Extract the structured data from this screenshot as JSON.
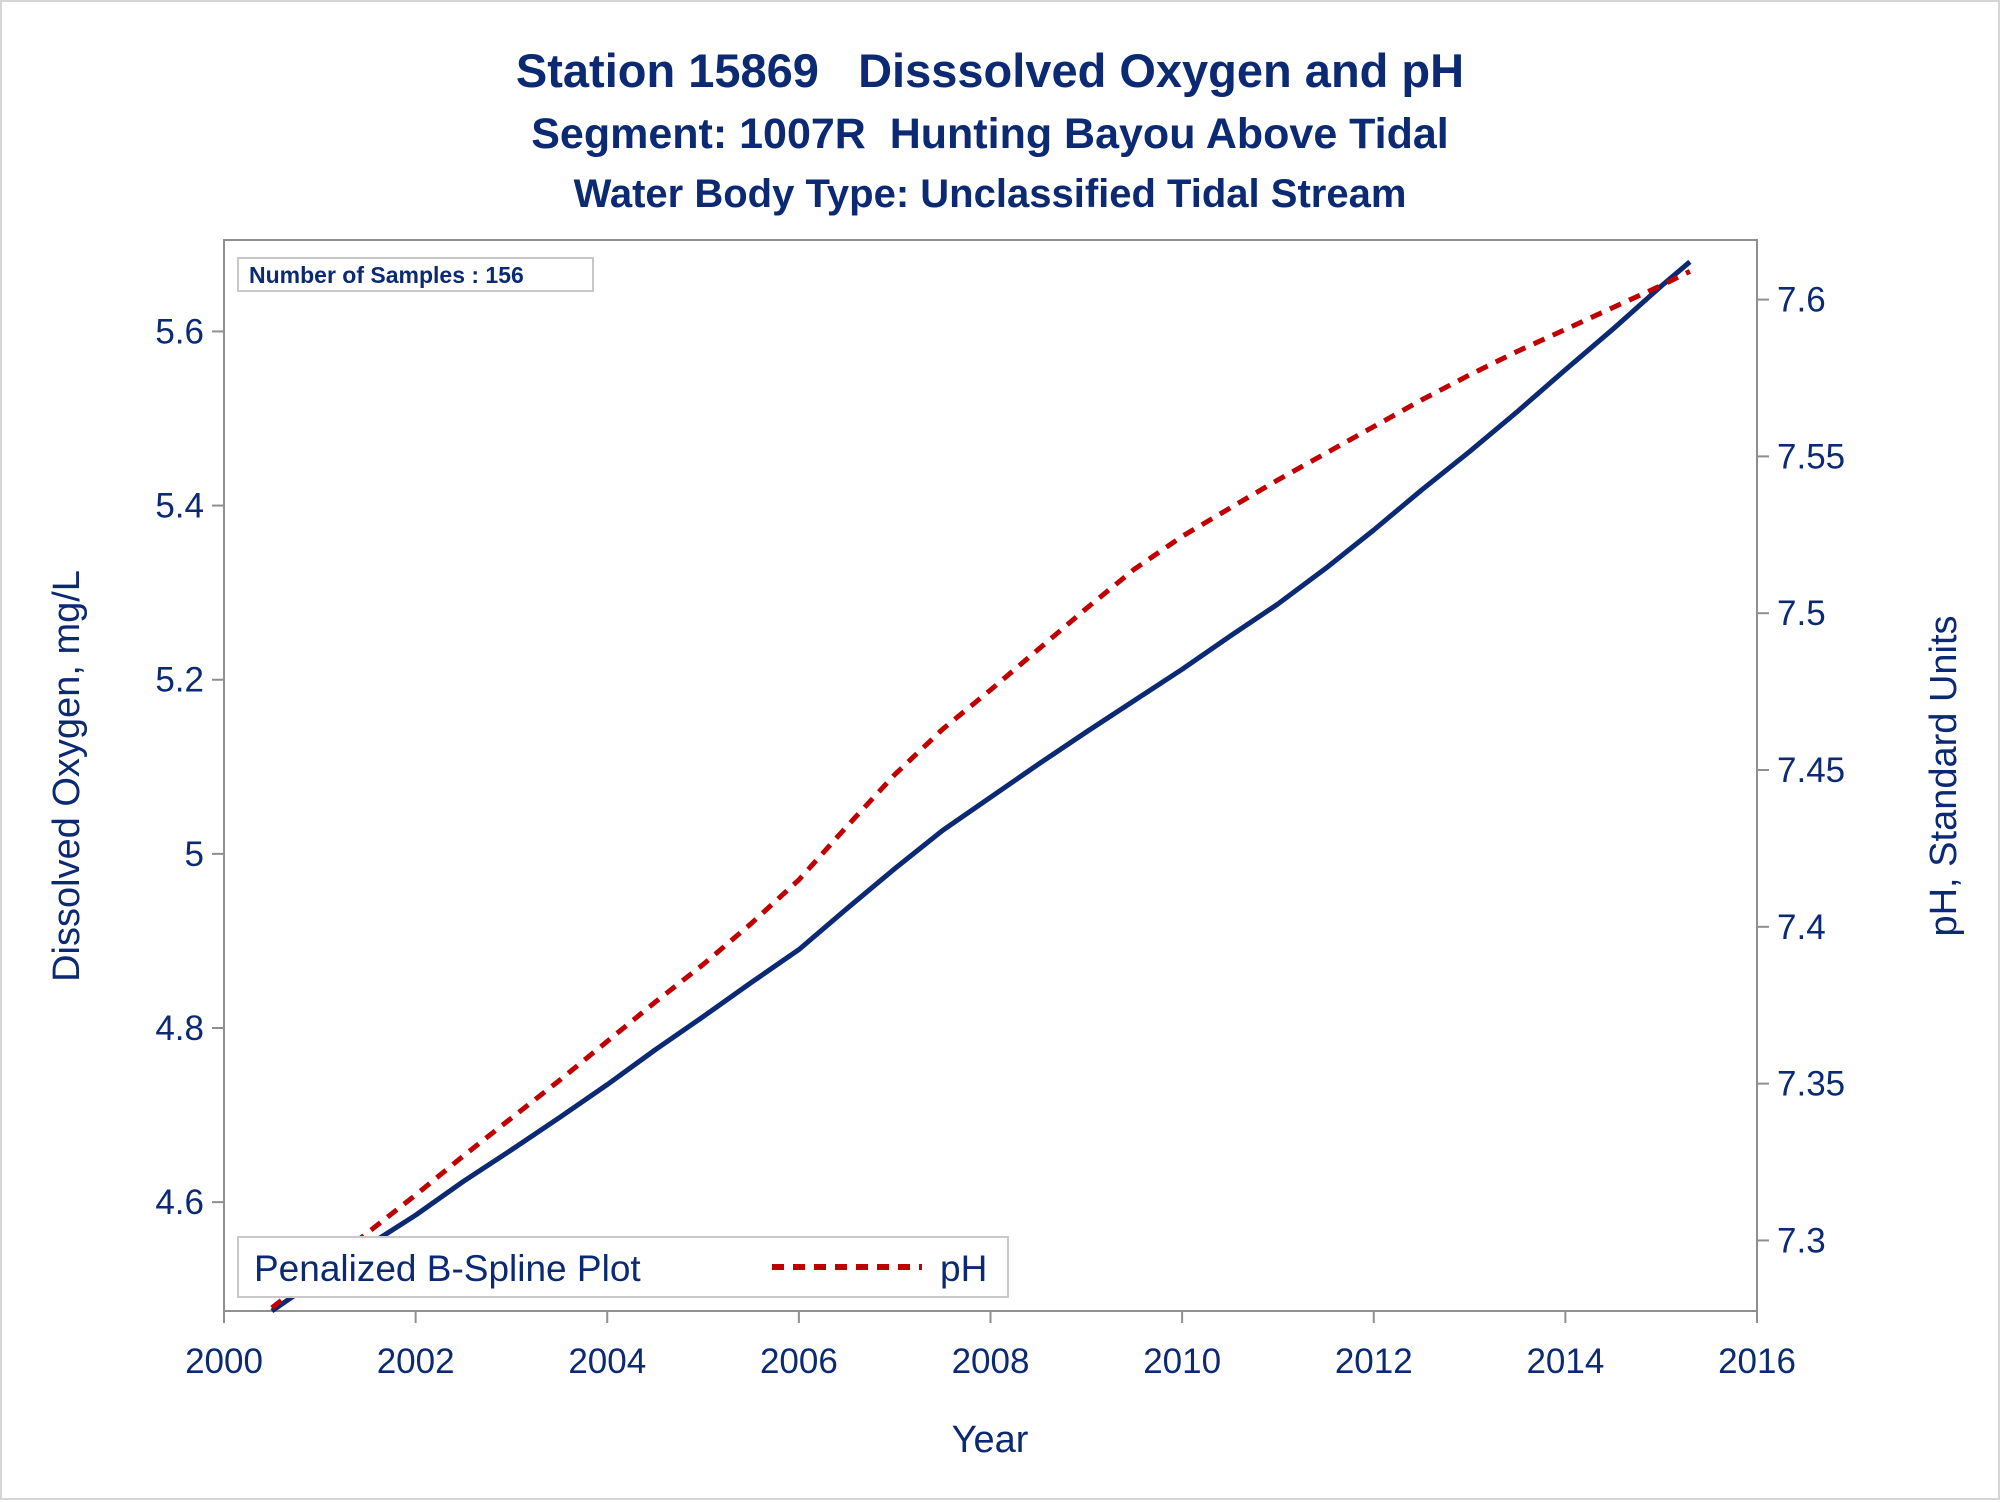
{
  "chart_data": {
    "type": "line",
    "title": "Station 15869   Disssolved Oxygen and pH",
    "subtitle": "Segment: 1007R  Hunting Bayou Above Tidal",
    "subtitle2": "Water Body Type: Unclassified Tidal Stream",
    "xlabel": "Year",
    "ylabel": "Dissolved Oxygen, mg/L",
    "y2label": "pH, Standard Units",
    "xlim": [
      2000,
      2016
    ],
    "ylim": [
      4.475,
      5.705
    ],
    "y2lim": [
      7.2775,
      7.619
    ],
    "xticks": [
      "2000",
      "2002",
      "2004",
      "2006",
      "2008",
      "2010",
      "2012",
      "2014",
      "2016"
    ],
    "yticks": [
      "4.6",
      "4.8",
      "5",
      "5.2",
      "5.4",
      "5.6"
    ],
    "y2ticks": [
      "7.3",
      "7.35",
      "7.4",
      "7.45",
      "7.5",
      "7.55",
      "7.6"
    ],
    "inset_note": "Number of Samples : 156",
    "legend_title": "Penalized B-Spline Plot",
    "legend_position": "bottom-left",
    "grid": false,
    "series": [
      {
        "axis": "left",
        "color": "#0b2a73",
        "style": "solid",
        "x": [
          2000.5,
          2001.0,
          2001.5,
          2002.0,
          2002.5,
          2003.0,
          2003.5,
          2004.0,
          2004.5,
          2005.0,
          2005.5,
          2006.0,
          2006.5,
          2007.0,
          2007.5,
          2008.0,
          2008.5,
          2009.0,
          2009.5,
          2010.0,
          2010.5,
          2011.0,
          2011.5,
          2012.0,
          2012.5,
          2013.0,
          2013.5,
          2014.0,
          2014.5,
          2015.0,
          2015.3
        ],
        "values": [
          4.475,
          4.513,
          4.55,
          4.585,
          4.624,
          4.66,
          4.697,
          4.735,
          4.775,
          4.813,
          4.852,
          4.89,
          4.937,
          4.983,
          5.027,
          5.065,
          5.103,
          5.14,
          5.176,
          5.212,
          5.25,
          5.287,
          5.328,
          5.372,
          5.418,
          5.462,
          5.508,
          5.556,
          5.603,
          5.652,
          5.68
        ]
      },
      {
        "name": "pH",
        "axis": "right",
        "color": "#c00000",
        "style": "dashed",
        "x": [
          2000.5,
          2001.0,
          2001.5,
          2002.0,
          2002.5,
          2003.0,
          2003.5,
          2004.0,
          2004.5,
          2005.0,
          2005.5,
          2006.0,
          2006.5,
          2007.0,
          2007.5,
          2008.0,
          2008.5,
          2009.0,
          2009.5,
          2010.0,
          2010.5,
          2011.0,
          2011.5,
          2012.0,
          2012.5,
          2013.0,
          2013.5,
          2014.0,
          2014.5,
          2015.0,
          2015.3
        ],
        "values": [
          7.2785,
          7.2905,
          7.3025,
          7.3145,
          7.327,
          7.339,
          7.351,
          7.3635,
          7.376,
          7.388,
          7.401,
          7.415,
          7.432,
          7.4485,
          7.463,
          7.4755,
          7.4885,
          7.5015,
          7.514,
          7.5245,
          7.5335,
          7.5425,
          7.551,
          7.5595,
          7.568,
          7.576,
          7.5835,
          7.5905,
          7.5975,
          7.6045,
          7.609
        ]
      }
    ]
  }
}
